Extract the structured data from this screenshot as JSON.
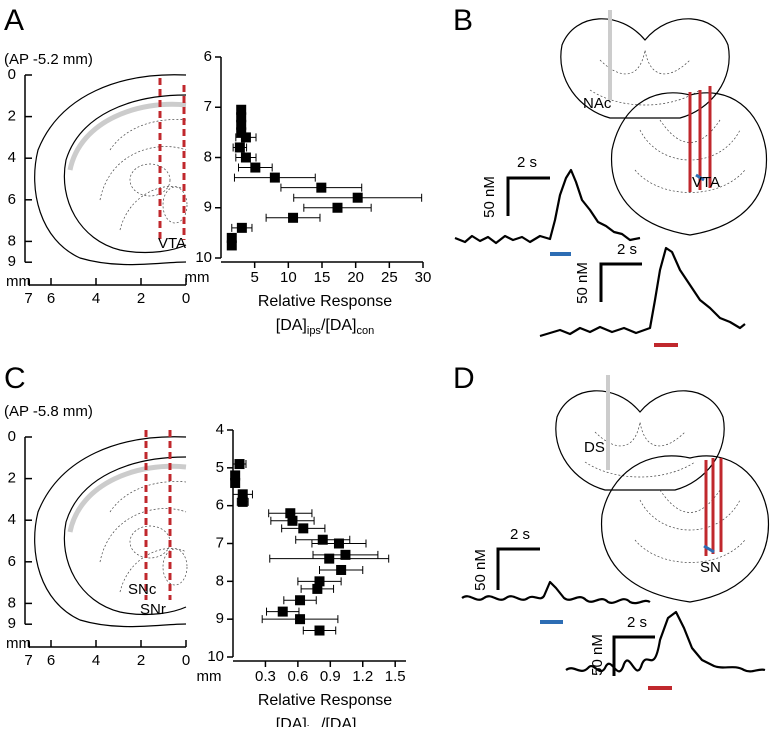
{
  "chart_data": [
    {
      "type": "scatter",
      "x_label": "Relative Response",
      "x_label_parts": [
        "[DA]",
        "ips",
        "/[DA]",
        "con"
      ],
      "x_unit_label": "mm",
      "x": [
        3.0,
        3.0,
        3.0,
        3.0,
        3.7,
        2.8,
        3.7,
        5.1,
        8.0,
        14.9,
        20.3,
        17.3,
        10.7,
        3.1,
        1.6,
        1.6
      ],
      "values": [
        7.05,
        7.2,
        7.35,
        7.5,
        7.6,
        7.8,
        8.0,
        8.2,
        8.4,
        8.6,
        8.8,
        9.0,
        9.2,
        9.4,
        9.6,
        9.75
      ],
      "xerr": [
        0.5,
        0.5,
        0.5,
        0.5,
        1.5,
        1.0,
        1.5,
        2.5,
        6.0,
        6.0,
        9.5,
        5.0,
        4.0,
        1.5,
        0.5,
        0.5
      ],
      "xlim": [
        0,
        30
      ],
      "xticks": [
        5,
        10,
        15,
        20,
        25,
        30
      ],
      "ylim": [
        6,
        10
      ],
      "yticks": [
        6,
        7,
        8,
        9,
        10
      ],
      "invert_y": true,
      "color": "#000000"
    },
    {
      "type": "scatter",
      "x_label": "Relative Response",
      "x_label_parts": [
        "[DA]",
        "ips",
        "/[DA]",
        "con"
      ],
      "x_unit_label": "mm",
      "x": [
        0.06,
        0.02,
        0.02,
        0.09,
        0.09,
        0.53,
        0.55,
        0.65,
        0.83,
        0.98,
        1.04,
        0.89,
        1.0,
        0.8,
        0.78,
        0.62,
        0.46,
        0.62,
        0.8
      ],
      "values": [
        4.9,
        5.2,
        5.4,
        5.7,
        5.9,
        6.2,
        6.4,
        6.6,
        6.9,
        7.0,
        7.3,
        7.4,
        7.7,
        8.0,
        8.2,
        8.5,
        8.8,
        9.0,
        9.3
      ],
      "xerr": [
        0.06,
        0.03,
        0.03,
        0.09,
        0.05,
        0.2,
        0.2,
        0.2,
        0.25,
        0.25,
        0.3,
        0.55,
        0.2,
        0.2,
        0.15,
        0.15,
        0.15,
        0.35,
        0.15
      ],
      "xlim": [
        0,
        1.6
      ],
      "xticks": [
        0.3,
        0.6,
        0.9,
        1.2,
        1.5
      ],
      "ylim": [
        4,
        10
      ],
      "yticks": [
        4,
        5,
        6,
        7,
        8,
        9,
        10
      ],
      "invert_y": true,
      "color": "#000000"
    }
  ],
  "panels": {
    "A": {
      "letter": "A",
      "coord": "(AP -5.2 mm)",
      "region": "VTA",
      "ruler": {
        "yticks": [
          0,
          2,
          4,
          6,
          8,
          9
        ],
        "xticks": [
          7,
          6,
          4,
          2,
          0
        ],
        "unit": "mm"
      }
    },
    "B": {
      "letter": "B",
      "site": "NAc",
      "region": "VTA",
      "scale1": {
        "time": "2 s",
        "conc": "50 nM"
      },
      "scale2": {
        "time": "2 s",
        "conc": "50 nM"
      }
    },
    "C": {
      "letter": "C",
      "coord": "(AP -5.8 mm)",
      "region1": "SNc",
      "region2": "SNr",
      "ruler": {
        "yticks": [
          0,
          2,
          4,
          6,
          8,
          9
        ],
        "xticks": [
          7,
          6,
          4,
          2,
          0
        ],
        "unit": "mm"
      }
    },
    "D": {
      "letter": "D",
      "site": "DS",
      "region": "SN",
      "scale1": {
        "time": "2 s",
        "conc": "50 nM"
      },
      "scale2": {
        "time": "2 s",
        "conc": "50 nM"
      }
    }
  }
}
